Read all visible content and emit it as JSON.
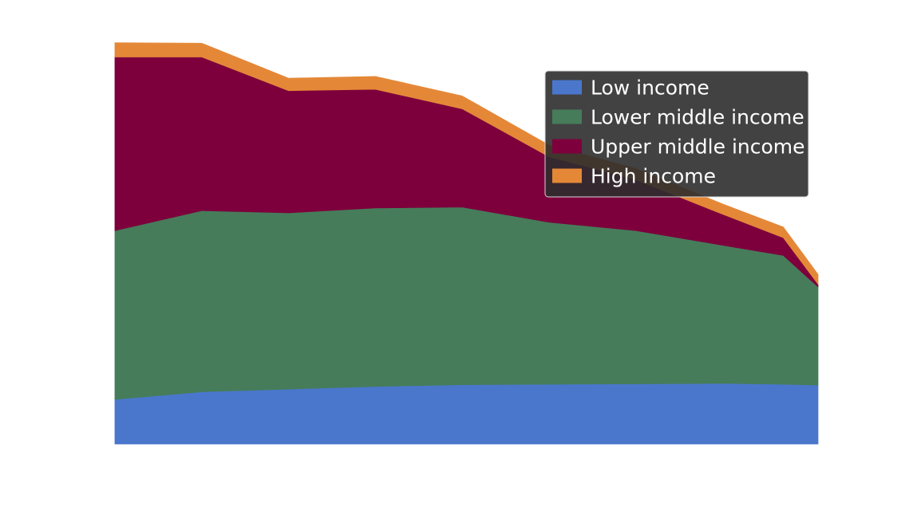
{
  "chart_data": {
    "type": "area",
    "stacked": true,
    "x": [
      0,
      1,
      2,
      3,
      4,
      5,
      6,
      7,
      7.7,
      8.1
    ],
    "ylim": [
      0,
      900
    ],
    "grid": false,
    "axes_visible": false,
    "legend_position": "top-right",
    "series": [
      {
        "name": "Low income",
        "color": "#4a77cc",
        "values": [
          101,
          118,
          124,
          130,
          134,
          135,
          136,
          137,
          135,
          133
        ]
      },
      {
        "name": "Lower middle income",
        "color": "#467c5a",
        "values": [
          381,
          409,
          398,
          403,
          401,
          366,
          346,
          312,
          291,
          222
        ]
      },
      {
        "name": "Upper middle income",
        "color": "#7d003c",
        "values": [
          392,
          347,
          276,
          268,
          222,
          148,
          115,
          70,
          40,
          6
        ]
      },
      {
        "name": "High income",
        "color": "#e48838",
        "values": [
          32,
          31,
          28,
          29,
          29,
          26,
          25,
          23,
          24,
          22
        ]
      }
    ]
  }
}
